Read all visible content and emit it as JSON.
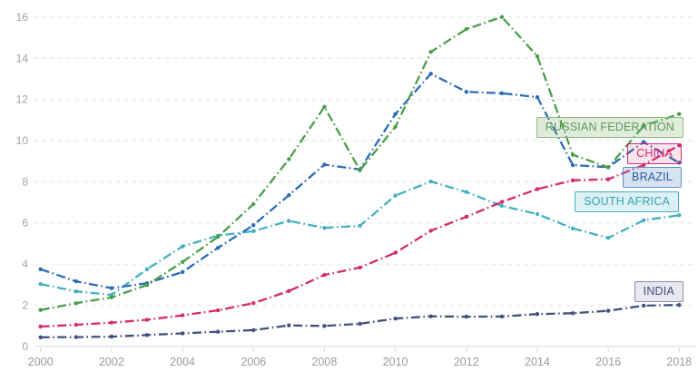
{
  "chart_data": {
    "type": "line",
    "title": "",
    "xlabel": "",
    "ylabel": "",
    "x": [
      2000,
      2001,
      2002,
      2003,
      2004,
      2005,
      2006,
      2007,
      2008,
      2009,
      2010,
      2011,
      2012,
      2013,
      2014,
      2015,
      2016,
      2017,
      2018
    ],
    "x_tick_labels": [
      "2000",
      "2002",
      "2004",
      "2006",
      "2008",
      "2010",
      "2012",
      "2014",
      "2016",
      "2018"
    ],
    "y_ticks": [
      0,
      2,
      4,
      6,
      8,
      10,
      12,
      14,
      16
    ],
    "ylim": [
      0,
      16
    ],
    "grid": "horizontal dashed gridlines, no vertical gridlines",
    "legend_position": "inline labels at right side of plot",
    "axis_text_color": "#9b9b9b",
    "gridline_color": "#e2e2e2",
    "baseline_color": "#d8d8d8",
    "series": [
      {
        "name": "Russian Federation",
        "label": "RUSSIAN FEDERATION",
        "color": "#4a9e4a",
        "label_style": {
          "text": "#63975e",
          "border": "#8cbb7c",
          "bg": "rgba(140, 187, 124, 0.28)"
        },
        "values": [
          1.77,
          2.1,
          2.38,
          2.98,
          4.1,
          5.32,
          6.92,
          9.1,
          11.64,
          8.56,
          10.67,
          14.31,
          15.42,
          16.01,
          14.1,
          9.31,
          8.7,
          10.72,
          11.29
        ]
      },
      {
        "name": "China",
        "label": "CHINA",
        "color": "#d42a6e",
        "label_style": {
          "text": "#d42a6e",
          "border": "#d42a6e",
          "bg": "rgba(212, 42, 110, 0.12)"
        },
        "values": [
          0.96,
          1.05,
          1.15,
          1.29,
          1.51,
          1.75,
          2.1,
          2.69,
          3.47,
          3.83,
          4.55,
          5.62,
          6.3,
          7.02,
          7.64,
          8.07,
          8.12,
          8.82,
          9.77
        ]
      },
      {
        "name": "Brazil",
        "label": "BRAZIL",
        "color": "#2c6cb4",
        "label_style": {
          "text": "#2a5d9f",
          "border": "#5f8fc9",
          "bg": "rgba(95, 143, 201, 0.25)"
        },
        "values": [
          3.75,
          3.16,
          2.83,
          3.07,
          3.61,
          4.79,
          5.89,
          7.35,
          8.83,
          8.6,
          11.29,
          13.25,
          12.37,
          12.3,
          12.11,
          8.81,
          8.71,
          9.93,
          8.92
        ]
      },
      {
        "name": "South Africa",
        "label": "SOUTH AFRICA",
        "color": "#43b1c0",
        "label_style": {
          "text": "#35a4b4",
          "border": "#43b1c0",
          "bg": "rgba(67, 177, 192, 0.18)"
        },
        "values": [
          3.03,
          2.67,
          2.5,
          3.75,
          4.86,
          5.38,
          5.6,
          6.1,
          5.76,
          5.86,
          7.33,
          8.01,
          7.5,
          6.83,
          6.43,
          5.73,
          5.27,
          6.13,
          6.37
        ]
      },
      {
        "name": "India",
        "label": "INDIA",
        "color": "#41517e",
        "label_style": {
          "text": "#3f4b7e",
          "border": "#8a8ab8",
          "bg": "rgba(138, 138, 184, 0.2)"
        },
        "values": [
          0.44,
          0.45,
          0.47,
          0.55,
          0.63,
          0.71,
          0.79,
          1.02,
          0.99,
          1.1,
          1.35,
          1.46,
          1.44,
          1.45,
          1.57,
          1.61,
          1.73,
          1.98,
          2.01
        ]
      }
    ]
  }
}
